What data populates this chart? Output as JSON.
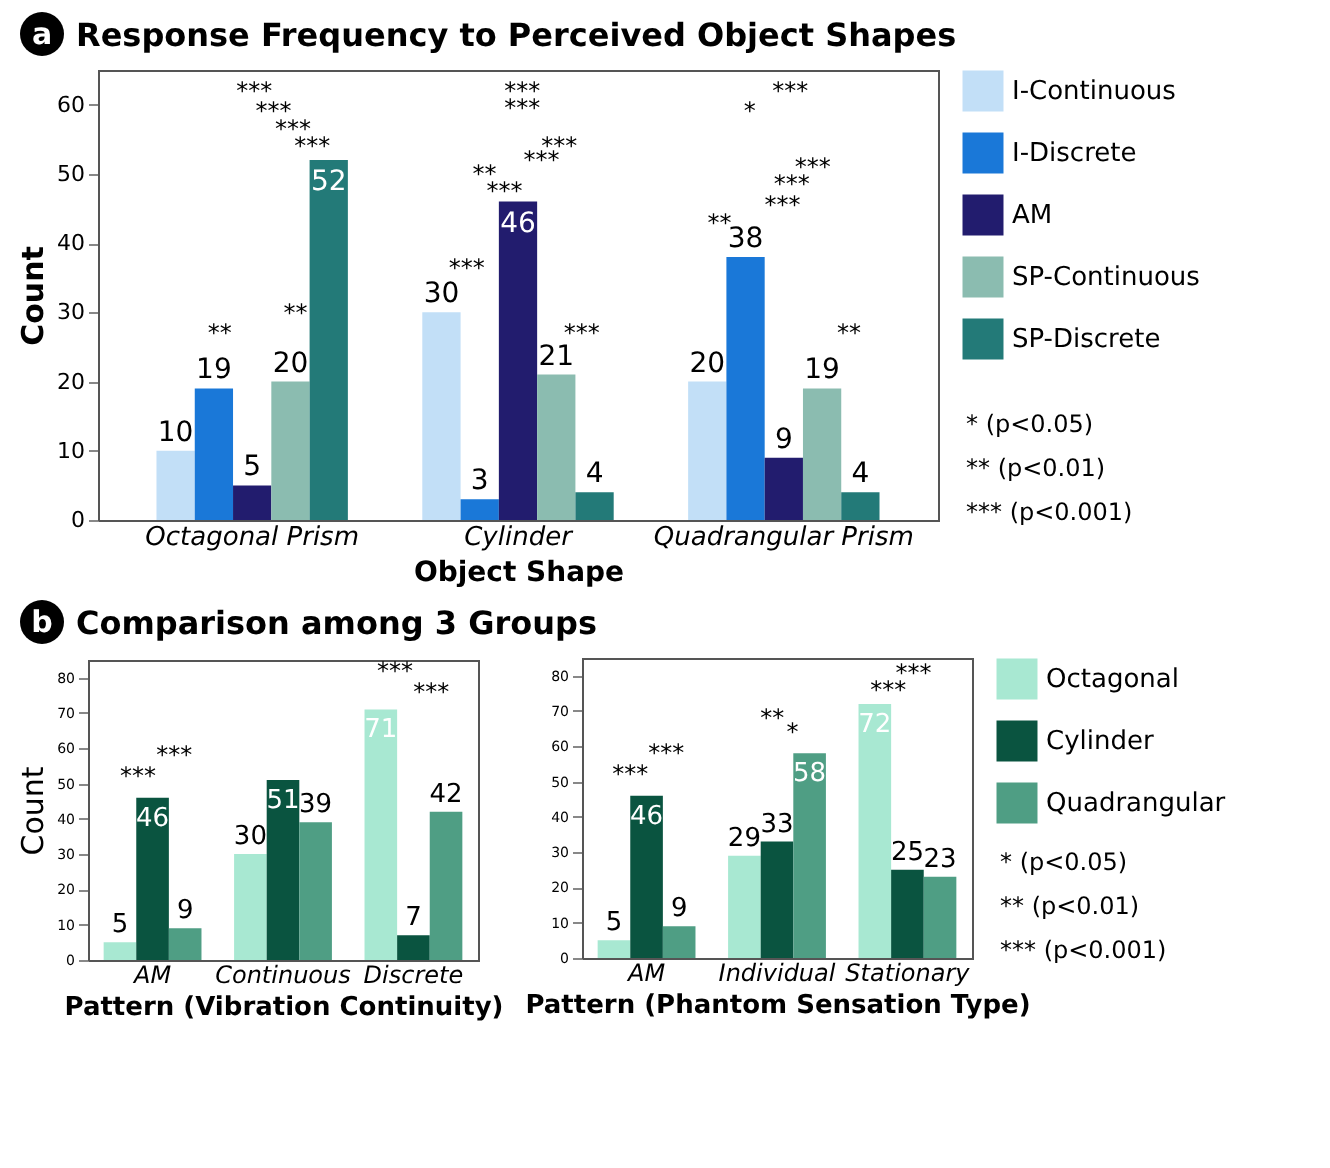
{
  "chart_data": [
    {
      "type": "bar",
      "title": "Response Frequency to Perceived Object Shapes",
      "xlabel": "Object Shape",
      "ylabel": "Count",
      "categories": [
        "Octagonal Prism",
        "Cylinder",
        "Quadrangular Prism"
      ],
      "series": [
        {
          "name": "I-Continuous",
          "color": "#c2dff7",
          "values": [
            10,
            30,
            20
          ]
        },
        {
          "name": "I-Discrete",
          "color": "#1a78d8",
          "values": [
            19,
            3,
            38
          ]
        },
        {
          "name": "AM",
          "color": "#221c6e",
          "values": [
            5,
            46,
            9
          ]
        },
        {
          "name": "SP-Continuous",
          "color": "#8bbcb0",
          "values": [
            20,
            21,
            19
          ]
        },
        {
          "name": "SP-Discrete",
          "color": "#237a78",
          "values": [
            52,
            4,
            4
          ]
        }
      ],
      "ylim": [
        0,
        65
      ],
      "yticks": [
        0,
        10,
        20,
        30,
        40,
        50,
        60
      ],
      "data_labels": true,
      "legend": "right",
      "annotations": [
        "a",
        "* (p<0.05)",
        "** (p<0.01)",
        "*** (p<0.001)",
        "***",
        "***",
        "***",
        "***",
        "**",
        "**",
        "***",
        "***",
        "***",
        "***",
        "**",
        "***",
        "***",
        "***",
        "***",
        "*",
        "***",
        "***",
        "***",
        "**",
        "**"
      ]
    },
    {
      "type": "bar",
      "title": "Comparison among 3 Groups",
      "xlabel": "Pattern (Vibration Continuity)",
      "ylabel": "Count",
      "categories": [
        "AM",
        "Continuous",
        "Discrete"
      ],
      "series": [
        {
          "color": "#a8e8d2",
          "values": [
            5,
            30,
            71
          ]
        },
        {
          "color": "#0a5440",
          "values": [
            46,
            51,
            7
          ]
        },
        {
          "color": "#4f9e84",
          "values": [
            9,
            39,
            42
          ]
        }
      ],
      "ylim": [
        0,
        85
      ],
      "yticks": [
        0,
        10,
        20,
        30,
        40,
        50,
        60,
        70,
        80
      ],
      "data_labels": true,
      "annotations": [
        "b",
        "***",
        "***",
        "***",
        "***"
      ]
    },
    {
      "type": "bar",
      "xlabel": "Pattern (Phantom Sensation Type)",
      "categories": [
        "AM",
        "Individual",
        "Stationary"
      ],
      "series": [
        {
          "name": "Octagonal",
          "color": "#a8e8d2",
          "values": [
            5,
            29,
            72
          ]
        },
        {
          "name": "Cylinder",
          "color": "#0a5440",
          "values": [
            46,
            33,
            25
          ]
        },
        {
          "name": "Quadrangular",
          "color": "#4f9e84",
          "values": [
            9,
            58,
            23
          ]
        }
      ],
      "ylim": [
        0,
        85
      ],
      "yticks": [
        0,
        10,
        20,
        30,
        40,
        50,
        60,
        70,
        80
      ],
      "data_labels": true,
      "legend": "right",
      "annotations": [
        "* (p<0.05)",
        "** (p<0.01)",
        "*** (p<0.001)",
        "***",
        "***",
        "**",
        "*",
        "***",
        "***"
      ]
    }
  ]
}
